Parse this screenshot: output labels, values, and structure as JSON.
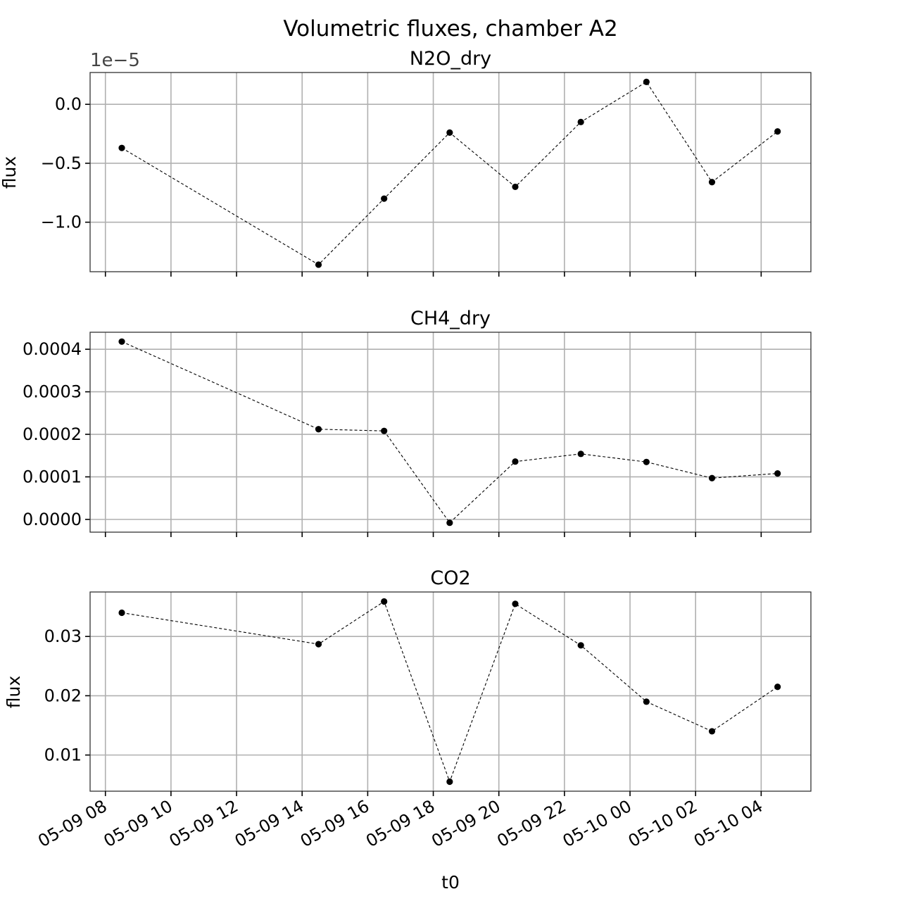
{
  "figure": {
    "title": "Volumetric fluxes, chamber A2",
    "xlabel": "t0"
  },
  "chart_data": [
    {
      "type": "line",
      "title": "N2O_dry",
      "ylabel": "flux",
      "offset_text": "1e−5",
      "scale": 1e-05,
      "ylim": [
        -1.42,
        0.27
      ],
      "yticks": [
        0.0,
        -0.5,
        -1.0
      ],
      "ytick_labels": [
        "0.0",
        "−0.5",
        "−1.0"
      ],
      "grid": true,
      "x": [
        "05-09 08:30",
        "05-09 14:30",
        "05-09 16:30",
        "05-09 18:30",
        "05-09 20:30",
        "05-09 22:30",
        "05-10 00:30",
        "05-10 02:30",
        "05-10 04:30"
      ],
      "values": [
        -0.37,
        -1.36,
        -0.8,
        -0.24,
        -0.7,
        -0.15,
        0.19,
        -0.66,
        -0.23
      ]
    },
    {
      "type": "line",
      "title": "CH4_dry",
      "ylabel": "",
      "offset_text": "",
      "scale": 1,
      "ylim": [
        -3e-05,
        0.00044
      ],
      "yticks": [
        0.0004,
        0.0003,
        0.0002,
        0.0001,
        0.0
      ],
      "ytick_labels": [
        "0.0004",
        "0.0003",
        "0.0002",
        "0.0001",
        "0.0000"
      ],
      "grid": true,
      "x": [
        "05-09 08:30",
        "05-09 14:30",
        "05-09 16:30",
        "05-09 18:30",
        "05-09 20:30",
        "05-09 22:30",
        "05-10 00:30",
        "05-10 02:30",
        "05-10 04:30"
      ],
      "values": [
        0.000418,
        0.000212,
        0.000208,
        -8e-06,
        0.000136,
        0.000154,
        0.000135,
        9.7e-05,
        0.000108
      ]
    },
    {
      "type": "line",
      "title": "CO2",
      "ylabel": "flux",
      "offset_text": "",
      "scale": 1,
      "ylim": [
        0.0039,
        0.0375
      ],
      "yticks": [
        0.03,
        0.02,
        0.01
      ],
      "ytick_labels": [
        "0.03",
        "0.02",
        "0.01"
      ],
      "grid": true,
      "x": [
        "05-09 08:30",
        "05-09 14:30",
        "05-09 16:30",
        "05-09 18:30",
        "05-09 20:30",
        "05-09 22:30",
        "05-10 00:30",
        "05-10 02:30",
        "05-10 04:30"
      ],
      "values": [
        0.034,
        0.0287,
        0.0359,
        0.0055,
        0.0355,
        0.0285,
        0.019,
        0.014,
        0.0215
      ]
    }
  ],
  "x_axis": {
    "xlim": [
      "05-09 07:32",
      "05-10 05:31"
    ],
    "ticks": [
      "05-09 08:00",
      "05-09 10:00",
      "05-09 12:00",
      "05-09 14:00",
      "05-09 16:00",
      "05-09 18:00",
      "05-09 20:00",
      "05-09 22:00",
      "05-10 00:00",
      "05-10 02:00",
      "05-10 04:00"
    ],
    "tick_labels": [
      "05-09 08",
      "05-09 10",
      "05-09 12",
      "05-09 14",
      "05-09 16",
      "05-09 18",
      "05-09 20",
      "05-09 22",
      "05-10 00",
      "05-10 02",
      "05-10 04"
    ]
  }
}
